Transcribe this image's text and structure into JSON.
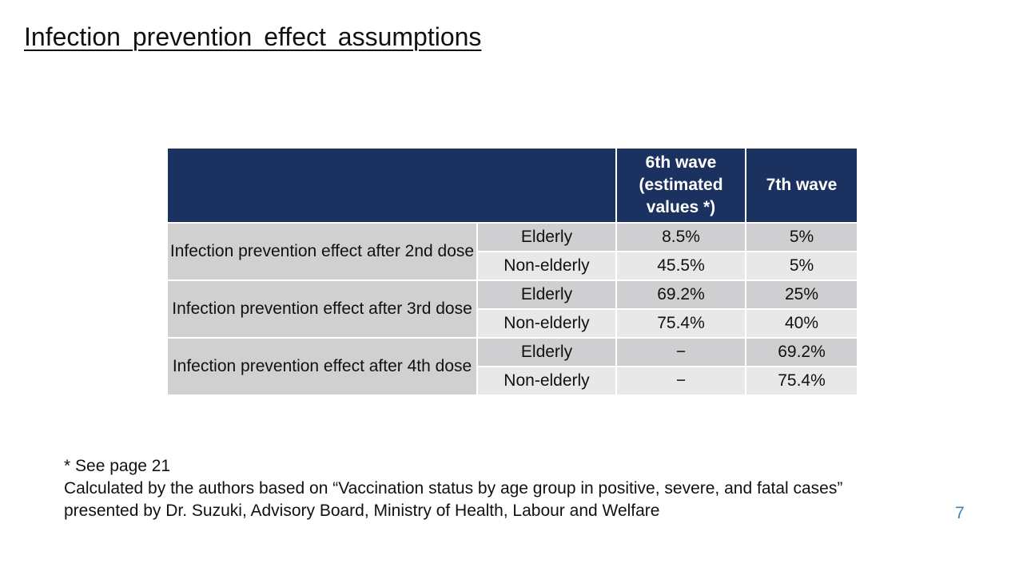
{
  "title": "Infection prevention effect assumptions",
  "table": {
    "headers": {
      "blank": "",
      "wave6": "6th wave (estimated values *)",
      "wave7": "7th wave"
    },
    "groups": [
      {
        "label": "Infection prevention effect after 2nd dose",
        "rows": [
          {
            "group": "Elderly",
            "wave6": "8.5%",
            "wave7": "5%"
          },
          {
            "group": "Non-elderly",
            "wave6": "45.5%",
            "wave7": "5%"
          }
        ]
      },
      {
        "label": "Infection prevention effect after 3rd dose",
        "rows": [
          {
            "group": "Elderly",
            "wave6": "69.2%",
            "wave7": "25%"
          },
          {
            "group": "Non-elderly",
            "wave6": "75.4%",
            "wave7": "40%"
          }
        ]
      },
      {
        "label": "Infection prevention effect after 4th dose",
        "rows": [
          {
            "group": "Elderly",
            "wave6": "−",
            "wave7": "69.2%"
          },
          {
            "group": "Non-elderly",
            "wave6": "−",
            "wave7": "75.4%"
          }
        ]
      }
    ]
  },
  "footnotes": {
    "line1": "* See page 21",
    "line2": "Calculated by the authors based on “Vaccination status by age group in positive, severe, and fatal cases”",
    "line3": "presented by Dr. Suzuki, Advisory Board, Ministry of Health, Labour and Welfare"
  },
  "page_number": "7"
}
